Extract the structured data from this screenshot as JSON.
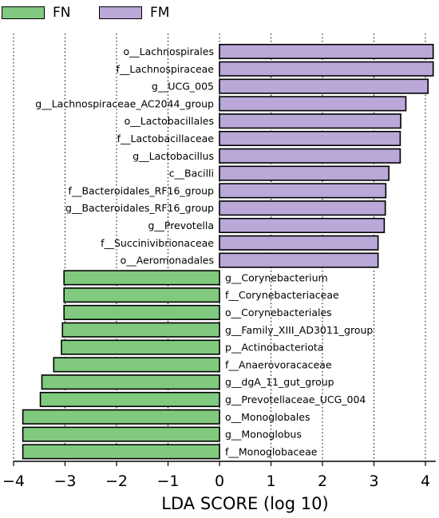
{
  "chart_data": {
    "type": "bar",
    "orientation": "horizontal",
    "xlabel": "LDA SCORE (log 10)",
    "xlim": [
      -4.0,
      4.2
    ],
    "xticks": [
      -4,
      -3,
      -2,
      -1,
      0,
      1,
      2,
      3,
      4
    ],
    "xtick_labels": [
      "−4",
      "−3",
      "−2",
      "−1",
      "0",
      "1",
      "2",
      "3",
      "4"
    ],
    "grid": "vertical dotted at every x tick",
    "legend_placement": "top-left",
    "series": [
      {
        "name": "FN",
        "color": "#80c97f"
      },
      {
        "name": "FM",
        "color": "#b9a8d8"
      }
    ],
    "categories": [
      "o__Lachnospirales",
      "f__Lachnospiraceae",
      "g__UCG_005",
      "g__Lachnospiraceae_AC2044_group",
      "o__Lactobacillales",
      "f__Lactobacillaceae",
      "g__Lactobacillus",
      "c__Bacilli",
      "f__Bacteroidales_RF16_group",
      "g__Bacteroidales_RF16_group",
      "g__Prevotella",
      "f__Succinivibrionaceae",
      "o__Aeromonadales",
      "g__Corynebacterium",
      "f__Corynebacteriaceae",
      "o__Corynebacteriales",
      "g__Family_XIII_AD3011_group",
      "p__Actinobacteriota",
      "f__Anaerovoracaceae",
      "g__dgA_11_gut_group",
      "g__Prevotellaceae_UCG_004",
      "o__Monoglobales",
      "g__Monoglobus",
      "f__Monoglobaceae"
    ],
    "values": [
      4.15,
      4.15,
      4.05,
      3.62,
      3.52,
      3.51,
      3.51,
      3.29,
      3.23,
      3.22,
      3.2,
      3.08,
      3.08,
      -3.02,
      -3.02,
      -3.02,
      -3.05,
      -3.07,
      -3.22,
      -3.45,
      -3.48,
      -3.82,
      -3.82,
      -3.82
    ],
    "groups": [
      "FM",
      "FM",
      "FM",
      "FM",
      "FM",
      "FM",
      "FM",
      "FM",
      "FM",
      "FM",
      "FM",
      "FM",
      "FM",
      "FN",
      "FN",
      "FN",
      "FN",
      "FN",
      "FN",
      "FN",
      "FN",
      "FN",
      "FN",
      "FN"
    ]
  }
}
